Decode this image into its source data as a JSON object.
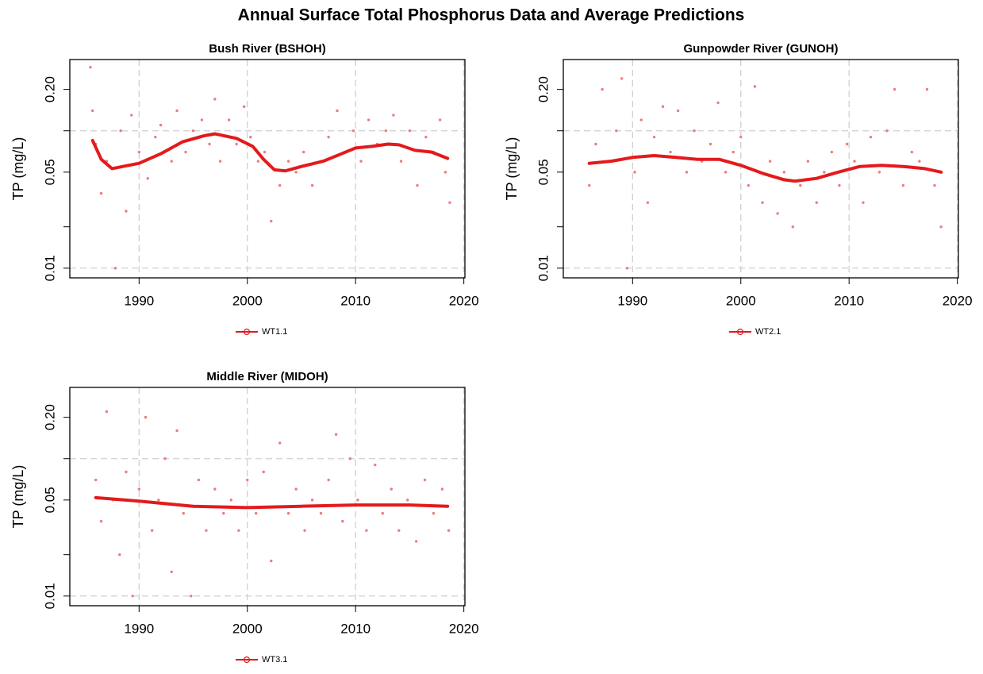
{
  "title": "Annual Surface Total Phosphorus Data and Average Predictions",
  "chart_data": [
    {
      "type": "line",
      "title": "Bush River (BSHOH)",
      "ylabel": "TP (mg/L)",
      "log_y": true,
      "grid": true,
      "legend": "bottom",
      "xlim": [
        1983.6,
        2020.1
      ],
      "ylim": [
        0.0085,
        0.33
      ],
      "xticks": [
        1990,
        2000,
        2010,
        2020
      ],
      "yticks": [
        0.01,
        0.05,
        {
          "value": 0.2,
          "label": "0.20"
        }
      ],
      "minor_yticks": [
        0.02,
        0.1
      ],
      "ygrid": [
        0.01,
        0.1
      ],
      "series": [
        {
          "name": "WT1.1",
          "color": "#e31a1c",
          "x": [
            1985.7,
            1986.5,
            1987.5,
            1988.5,
            1990,
            1992,
            1994,
            1996,
            1997,
            1999,
            2000.5,
            2001.5,
            2002.5,
            2003.5,
            2005,
            2007,
            2008.5,
            2010,
            2011.5,
            2013,
            2014,
            2015.5,
            2017,
            2018.5
          ],
          "values": [
            0.085,
            0.062,
            0.053,
            0.055,
            0.058,
            0.068,
            0.083,
            0.092,
            0.095,
            0.088,
            0.077,
            0.062,
            0.052,
            0.051,
            0.055,
            0.06,
            0.067,
            0.075,
            0.077,
            0.08,
            0.079,
            0.072,
            0.07,
            0.063
          ]
        }
      ],
      "observations": {
        "color": "#ee7b7b",
        "x": [
          1985.5,
          1985.7,
          1986,
          1986.5,
          1987,
          1987.8,
          1988.3,
          1988.8,
          1989.3,
          1990,
          1990.8,
          1991.5,
          1992,
          1993,
          1993.5,
          1994.3,
          1995,
          1995.8,
          1996.5,
          1997,
          1997.5,
          1998.3,
          1999,
          1999.7,
          2000.3,
          2001,
          2001.6,
          2002.2,
          2003,
          2003.8,
          2004.5,
          2005.2,
          2006,
          2006.8,
          2007.5,
          2008.3,
          2009,
          2009.8,
          2010.5,
          2011.2,
          2012,
          2012.8,
          2013.5,
          2014.2,
          2015,
          2015.7,
          2016.5,
          2017.2,
          2017.8,
          2018.3,
          2018.7
        ],
        "values": [
          0.29,
          0.14,
          0.08,
          0.035,
          0.06,
          0.01,
          0.1,
          0.026,
          0.13,
          0.07,
          0.045,
          0.09,
          0.11,
          0.06,
          0.14,
          0.07,
          0.1,
          0.12,
          0.08,
          0.17,
          0.06,
          0.12,
          0.08,
          0.15,
          0.09,
          0.06,
          0.07,
          0.022,
          0.04,
          0.06,
          0.05,
          0.07,
          0.04,
          0.06,
          0.09,
          0.14,
          0.07,
          0.1,
          0.06,
          0.12,
          0.08,
          0.1,
          0.13,
          0.06,
          0.1,
          0.04,
          0.09,
          0.07,
          0.12,
          0.05,
          0.03
        ]
      }
    },
    {
      "type": "line",
      "title": "Gunpowder River (GUNOH)",
      "ylabel": "TP (mg/L)",
      "log_y": true,
      "grid": true,
      "legend": "bottom",
      "xlim": [
        1983.6,
        2020.1
      ],
      "ylim": [
        0.0085,
        0.33
      ],
      "xticks": [
        1990,
        2000,
        2010,
        2020
      ],
      "yticks": [
        0.01,
        0.05,
        {
          "value": 0.2,
          "label": "0.20"
        }
      ],
      "minor_yticks": [
        0.02,
        0.1
      ],
      "ygrid": [
        0.01,
        0.1
      ],
      "series": [
        {
          "name": "WT2.1",
          "color": "#e31a1c",
          "x": [
            1986,
            1988,
            1990,
            1992,
            1994,
            1996,
            1998,
            2000,
            2002,
            2004,
            2005,
            2007,
            2009,
            2011,
            2013,
            2015,
            2017,
            2018.5
          ],
          "values": [
            0.058,
            0.06,
            0.064,
            0.066,
            0.064,
            0.062,
            0.062,
            0.056,
            0.049,
            0.044,
            0.043,
            0.045,
            0.05,
            0.055,
            0.056,
            0.055,
            0.053,
            0.05
          ]
        }
      ],
      "observations": {
        "color": "#ee7b7b",
        "x": [
          1986,
          1986.6,
          1987.2,
          1987.9,
          1988.5,
          1989,
          1989.5,
          1990.2,
          1990.8,
          1991.4,
          1992,
          1992.8,
          1993.5,
          1994.2,
          1995,
          1995.7,
          1996.4,
          1997.2,
          1997.9,
          1998.6,
          1999.3,
          2000,
          2000.7,
          2001.3,
          2002,
          2002.7,
          2003.4,
          2004,
          2004.8,
          2005.5,
          2006.2,
          2007,
          2007.7,
          2008.4,
          2009.1,
          2009.8,
          2010.5,
          2011.3,
          2012,
          2012.8,
          2013.5,
          2014.2,
          2015,
          2015.8,
          2016.5,
          2017.2,
          2017.9,
          2018.5
        ],
        "values": [
          0.04,
          0.08,
          0.2,
          0.06,
          0.1,
          0.24,
          0.01,
          0.05,
          0.12,
          0.03,
          0.09,
          0.15,
          0.07,
          0.14,
          0.05,
          0.1,
          0.06,
          0.08,
          0.16,
          0.05,
          0.07,
          0.09,
          0.04,
          0.21,
          0.03,
          0.06,
          0.025,
          0.05,
          0.02,
          0.04,
          0.06,
          0.03,
          0.05,
          0.07,
          0.04,
          0.08,
          0.06,
          0.03,
          0.09,
          0.05,
          0.1,
          0.2,
          0.04,
          0.07,
          0.06,
          0.2,
          0.04,
          0.02
        ]
      }
    },
    {
      "type": "line",
      "title": "Middle River (MIDOH)",
      "ylabel": "TP (mg/L)",
      "log_y": true,
      "grid": true,
      "legend": "bottom",
      "xlim": [
        1983.6,
        2020.1
      ],
      "ylim": [
        0.0085,
        0.33
      ],
      "xticks": [
        1990,
        2000,
        2010,
        2020
      ],
      "yticks": [
        0.01,
        0.05,
        {
          "value": 0.2,
          "label": "0.20"
        }
      ],
      "minor_yticks": [
        0.02,
        0.1
      ],
      "ygrid": [
        0.01,
        0.1
      ],
      "series": [
        {
          "name": "WT3.1",
          "color": "#e31a1c",
          "x": [
            1986,
            1990,
            1995,
            2000,
            2005,
            2010,
            2015,
            2018.5
          ],
          "values": [
            0.052,
            0.049,
            0.045,
            0.044,
            0.045,
            0.046,
            0.046,
            0.045
          ]
        }
      ],
      "observations": {
        "color": "#ee7b7b",
        "x": [
          1986,
          1986.5,
          1987,
          1987.6,
          1988.2,
          1988.8,
          1989.4,
          1990,
          1990.6,
          1991.2,
          1991.8,
          1992.4,
          1993,
          1993.5,
          1994.1,
          1994.8,
          1995.5,
          1996.2,
          1997,
          1997.8,
          1998.5,
          1999.2,
          2000,
          2000.8,
          2001.5,
          2002.2,
          2003,
          2003.8,
          2004.5,
          2005.3,
          2006,
          2006.8,
          2007.5,
          2008.2,
          2008.8,
          2009.5,
          2010.2,
          2011,
          2011.8,
          2012.5,
          2013.3,
          2014,
          2014.8,
          2015.6,
          2016.4,
          2017.2,
          2018,
          2018.6
        ],
        "values": [
          0.07,
          0.035,
          0.22,
          0.05,
          0.02,
          0.08,
          0.01,
          0.06,
          0.2,
          0.03,
          0.05,
          0.1,
          0.015,
          0.16,
          0.04,
          0.01,
          0.07,
          0.03,
          0.06,
          0.04,
          0.05,
          0.03,
          0.07,
          0.04,
          0.08,
          0.018,
          0.13,
          0.04,
          0.06,
          0.03,
          0.05,
          0.04,
          0.07,
          0.15,
          0.035,
          0.1,
          0.05,
          0.03,
          0.09,
          0.04,
          0.06,
          0.03,
          0.05,
          0.025,
          0.07,
          0.04,
          0.06,
          0.03
        ]
      }
    }
  ]
}
